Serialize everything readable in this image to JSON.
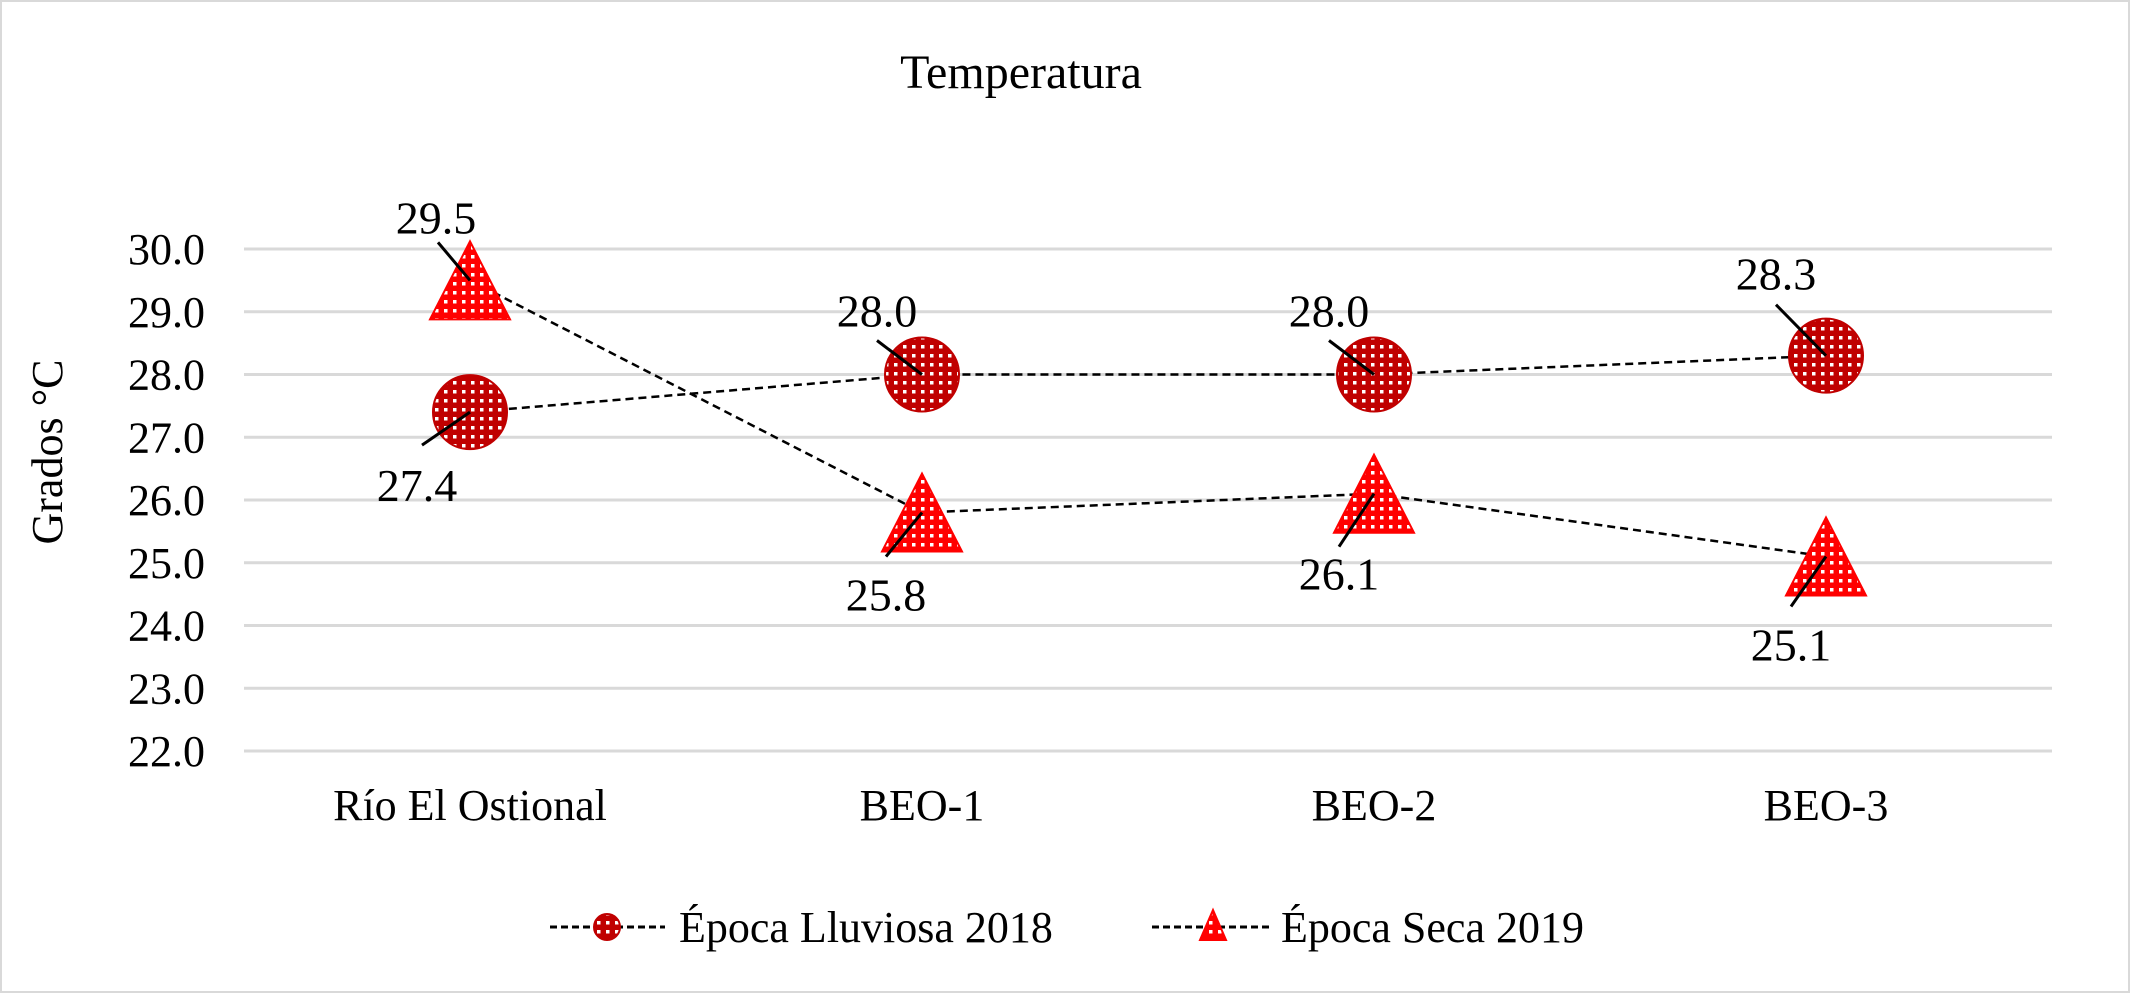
{
  "chart_data": {
    "type": "line",
    "title": "Temperatura",
    "xlabel": "",
    "ylabel": "Grados °C",
    "categories": [
      "Río El Ostional",
      "BEO-1",
      "BEO-2",
      "BEO-3"
    ],
    "ylim": [
      22.0,
      30.0
    ],
    "yticks": [
      "22.0",
      "23.0",
      "24.0",
      "25.0",
      "26.0",
      "27.0",
      "28.0",
      "29.0",
      "30.0"
    ],
    "grid": true,
    "legend_position": "bottom",
    "series": [
      {
        "name": "Época Lluviosa 2018",
        "values": [
          27.4,
          28.0,
          28.0,
          28.3
        ],
        "labels": [
          "27.4",
          "28.0",
          "28.0",
          "28.3"
        ],
        "marker": "circle",
        "color": "#c00000",
        "line_style": "dashed"
      },
      {
        "name": "Época Seca 2019",
        "values": [
          29.5,
          25.8,
          26.1,
          25.1
        ],
        "labels": [
          "29.5",
          "25.8",
          "26.1",
          "25.1"
        ],
        "marker": "triangle",
        "color": "#ff0000",
        "line_style": "dashed"
      }
    ]
  }
}
